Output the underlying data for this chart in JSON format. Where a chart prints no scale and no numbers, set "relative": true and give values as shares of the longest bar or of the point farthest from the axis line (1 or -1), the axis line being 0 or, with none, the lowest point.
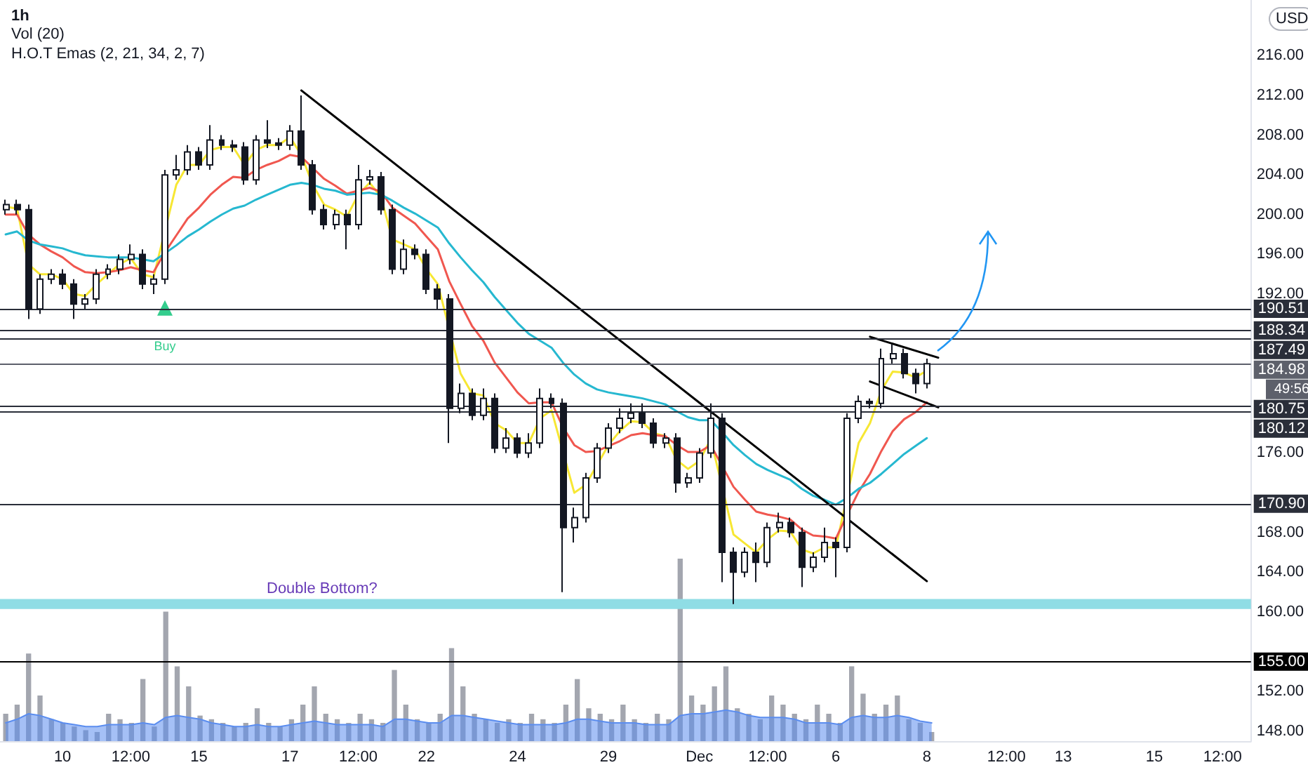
{
  "chart_data": [
    {
      "type": "candlestick",
      "title": "1h",
      "annotations": [
        "Vol (20)",
        "H.O.T Emas (2, 21, 34, 2, 7)",
        "USD",
        "49:56",
        "Double Bottom?"
      ],
      "categories": [
        null,
        null,
        null,
        null,
        null,
        "10",
        null,
        null,
        null,
        null,
        null,
        "12:00",
        null,
        null,
        null,
        null,
        null,
        "15",
        null,
        null,
        null,
        null,
        null,
        null,
        null,
        "17",
        null,
        null,
        null,
        null,
        null,
        "12:00",
        null,
        null,
        null,
        null,
        null,
        "22",
        null,
        null,
        null,
        null,
        null,
        null,
        null,
        "24",
        null,
        null,
        null,
        null,
        null,
        null,
        null,
        "29",
        null,
        null,
        null,
        null,
        null,
        null,
        null,
        "Dec",
        null,
        null,
        null,
        null,
        null,
        "12:00",
        null,
        null,
        null,
        null,
        null,
        "6",
        null,
        null,
        null,
        null,
        null,
        null,
        null,
        "8",
        null,
        null,
        null,
        null,
        null,
        null,
        "12:00",
        null,
        null,
        null,
        null,
        "13",
        null,
        null,
        null,
        null,
        null,
        null,
        null,
        "15",
        null,
        null,
        null,
        null,
        null,
        "12:00",
        null,
        null
      ],
      "color": "#131722",
      "ohlc": [
        [
          200.5,
          201.5,
          200.0,
          201.0
        ],
        [
          201.0,
          201.5,
          200.0,
          200.5
        ],
        [
          200.5,
          201.0,
          189.5,
          190.5
        ],
        [
          190.5,
          194.0,
          190.0,
          193.5
        ],
        [
          193.5,
          194.5,
          193.0,
          194.0
        ],
        [
          194.0,
          194.5,
          192.5,
          193.0
        ],
        [
          193.0,
          193.5,
          189.5,
          191.0
        ],
        [
          191.0,
          192.0,
          190.5,
          191.5
        ],
        [
          191.5,
          194.5,
          191.0,
          194.0
        ],
        [
          194.0,
          195.0,
          193.5,
          194.5
        ],
        [
          194.5,
          196.0,
          194.0,
          195.5
        ],
        [
          195.5,
          197.0,
          195.0,
          196.0
        ],
        [
          196.0,
          196.5,
          192.5,
          193.0
        ],
        [
          193.0,
          194.0,
          192.0,
          193.5
        ],
        [
          193.5,
          204.5,
          193.0,
          204.0
        ],
        [
          204.0,
          206.0,
          203.5,
          204.5
        ],
        [
          204.5,
          207.0,
          204.0,
          206.3
        ],
        [
          206.3,
          206.8,
          204.5,
          205.0
        ],
        [
          205.0,
          209.0,
          204.5,
          207.5
        ],
        [
          207.5,
          208.0,
          206.5,
          207.0
        ],
        [
          207.0,
          207.5,
          206.3,
          206.8
        ],
        [
          206.8,
          207.3,
          203.0,
          203.5
        ],
        [
          203.5,
          208.0,
          203.0,
          207.5
        ],
        [
          207.5,
          209.5,
          206.7,
          207.2
        ],
        [
          207.2,
          207.7,
          206.5,
          207.0
        ],
        [
          207.0,
          209.0,
          206.5,
          208.4
        ],
        [
          208.4,
          212.0,
          204.5,
          205.0
        ],
        [
          205.0,
          205.5,
          200.0,
          200.5
        ],
        [
          200.5,
          201.0,
          198.5,
          199.0
        ],
        [
          199.0,
          200.5,
          198.5,
          200.0
        ],
        [
          200.0,
          200.5,
          196.5,
          199.0
        ],
        [
          199.0,
          205.0,
          198.5,
          203.5
        ],
        [
          203.5,
          204.5,
          203.0,
          203.8
        ],
        [
          203.8,
          204.3,
          200.0,
          200.5
        ],
        [
          200.5,
          201.0,
          194.0,
          194.5
        ],
        [
          194.5,
          197.5,
          194.0,
          196.5
        ],
        [
          196.5,
          197.0,
          195.5,
          196.0
        ],
        [
          196.0,
          196.5,
          192.0,
          192.5
        ],
        [
          192.5,
          193.0,
          190.5,
          191.5
        ],
        [
          191.5,
          192.0,
          177.0,
          180.5
        ],
        [
          180.5,
          183.0,
          180.0,
          182.0
        ],
        [
          182.0,
          182.5,
          179.3,
          179.8
        ],
        [
          179.8,
          182.5,
          179.3,
          181.5
        ],
        [
          181.5,
          182.0,
          176.0,
          176.5
        ],
        [
          176.5,
          178.5,
          176.0,
          177.5
        ],
        [
          177.5,
          178.0,
          175.5,
          176.0
        ],
        [
          176.0,
          178.0,
          175.5,
          177.0
        ],
        [
          177.0,
          182.5,
          176.5,
          181.5
        ],
        [
          181.5,
          182.0,
          180.5,
          181.0
        ],
        [
          181.0,
          181.5,
          162.0,
          168.5
        ],
        [
          168.5,
          170.5,
          167.0,
          169.5
        ],
        [
          169.5,
          174.0,
          169.0,
          173.5
        ],
        [
          173.5,
          177.0,
          173.0,
          176.5
        ],
        [
          176.5,
          179.0,
          176.0,
          178.5
        ],
        [
          178.5,
          180.5,
          178.0,
          179.5
        ],
        [
          179.5,
          181.0,
          179.0,
          180.0
        ],
        [
          180.0,
          181.0,
          178.5,
          179.0
        ],
        [
          179.0,
          179.5,
          176.5,
          177.0
        ],
        [
          177.0,
          178.0,
          176.5,
          177.5
        ],
        [
          177.5,
          178.0,
          172.0,
          173.0
        ],
        [
          173.0,
          174.0,
          172.5,
          173.5
        ],
        [
          173.5,
          176.5,
          173.0,
          176.0
        ],
        [
          176.0,
          181.0,
          175.5,
          179.5
        ],
        [
          179.5,
          180.0,
          163.0,
          166.0
        ],
        [
          166.0,
          166.5,
          160.8,
          164.0
        ],
        [
          164.0,
          166.5,
          163.5,
          166.0
        ],
        [
          166.0,
          167.0,
          163.0,
          165.0
        ],
        [
          165.0,
          169.0,
          164.5,
          168.5
        ],
        [
          168.5,
          170.0,
          168.0,
          169.0
        ],
        [
          169.0,
          169.5,
          167.5,
          168.0
        ],
        [
          168.0,
          168.5,
          162.5,
          164.5
        ],
        [
          164.5,
          166.0,
          164.0,
          165.5
        ],
        [
          165.5,
          168.5,
          165.0,
          167.0
        ],
        [
          167.0,
          167.5,
          163.5,
          166.5
        ],
        [
          166.5,
          180.0,
          166.0,
          179.5
        ],
        [
          179.5,
          181.8,
          179.0,
          181.2
        ],
        [
          181.2,
          181.5,
          180.5,
          181.0
        ],
        [
          181.0,
          186.5,
          180.5,
          185.5
        ],
        [
          185.5,
          187.0,
          185.0,
          186.0
        ],
        [
          186.0,
          186.5,
          183.5,
          184.0
        ],
        [
          184.0,
          184.5,
          182.0,
          183.0
        ],
        [
          183.0,
          185.5,
          182.5,
          184.98
        ],
        null,
        null,
        null,
        null,
        null,
        null,
        null,
        null,
        null,
        null,
        null,
        null,
        null,
        null,
        null,
        null,
        null,
        null,
        null,
        null,
        null,
        null,
        null,
        null,
        null,
        null,
        null,
        null
      ],
      "marker": "none",
      "series": [
        {
          "type": "line",
          "color": "#f7e733",
          "values": [
            200.8,
            200.6,
            195.0,
            194.0,
            194.0,
            193.5,
            192.0,
            191.8,
            193.0,
            194.0,
            195.0,
            195.6,
            194.0,
            193.7,
            null,
            203.0,
            205.0,
            205.0,
            206.5,
            206.8,
            206.8,
            205.0,
            206.5,
            207.0,
            207.0,
            207.8,
            206.0,
            203.0,
            201.0,
            200.5,
            199.8,
            202.0,
            203.2,
            201.8,
            197.5,
            197.0,
            196.5,
            194.5,
            193.0,
            null,
            184.0,
            182.0,
            181.8,
            179.0,
            178.3,
            177.0,
            177.0,
            179.5,
            180.3,
            null,
            172.0,
            172.8,
            174.8,
            176.8,
            178.2,
            179.2,
            179.1,
            178.0,
            177.7,
            175.3,
            174.4,
            175.2,
            177.4,
            null,
            167.8,
            166.9,
            166.0,
            167.3,
            168.2,
            168.1,
            166.3,
            165.9,
            166.5,
            166.5,
            null,
            177.0,
            179.0,
            182.3,
            184.2,
            184.1,
            183.6,
            184.3,
            null,
            null,
            null,
            null,
            null,
            null,
            null,
            null,
            null,
            null,
            null,
            null,
            null,
            null,
            null,
            null,
            null,
            null,
            null,
            null,
            null,
            null,
            null,
            null,
            null,
            null,
            null,
            null
          ]
        },
        {
          "type": "line",
          "color": "#f0574f",
          "values": [
            200.0,
            200.0,
            198.0,
            197.0,
            196.3,
            195.7,
            194.8,
            194.2,
            194.1,
            194.2,
            194.4,
            194.7,
            194.4,
            194.2,
            196.2,
            197.9,
            199.6,
            200.7,
            202.0,
            203.0,
            203.8,
            203.7,
            204.5,
            205.0,
            205.4,
            206.0,
            205.8,
            204.7,
            203.6,
            202.9,
            202.1,
            202.4,
            202.7,
            202.3,
            200.7,
            199.9,
            199.1,
            197.8,
            196.5,
            193.3,
            191.0,
            188.8,
            187.3,
            185.1,
            183.6,
            182.1,
            181.0,
            181.1,
            181.1,
            178.6,
            176.8,
            176.1,
            176.2,
            176.7,
            177.2,
            177.8,
            178.0,
            177.8,
            177.7,
            176.8,
            176.1,
            176.1,
            176.8,
            174.7,
            172.6,
            171.3,
            170.1,
            169.8,
            169.6,
            169.3,
            168.3,
            167.7,
            167.6,
            167.4,
            169.8,
            172.1,
            173.9,
            176.2,
            178.2,
            179.4,
            180.1,
            181.1,
            null,
            null,
            null,
            null,
            null,
            null,
            null,
            null,
            null,
            null,
            null,
            null,
            null,
            null,
            null,
            null,
            null,
            null,
            null,
            null,
            null,
            null,
            null,
            null,
            null,
            null,
            null,
            null
          ]
        },
        {
          "type": "line",
          "color": "#26b8d0",
          "values": [
            198.0,
            198.3,
            197.4,
            197.0,
            196.8,
            196.6,
            196.2,
            195.9,
            195.8,
            195.7,
            195.7,
            195.7,
            195.5,
            195.3,
            196.1,
            196.9,
            197.8,
            198.5,
            199.3,
            200.0,
            200.6,
            200.9,
            201.5,
            202.0,
            202.5,
            203.0,
            203.2,
            203.0,
            202.6,
            202.4,
            202.0,
            202.1,
            202.2,
            202.0,
            201.4,
            200.7,
            200.1,
            199.4,
            198.7,
            197.1,
            195.7,
            194.4,
            193.2,
            191.7,
            190.4,
            189.1,
            188.0,
            187.3,
            186.6,
            185.1,
            183.9,
            183.0,
            182.4,
            182.1,
            181.9,
            181.7,
            181.5,
            181.2,
            180.9,
            180.2,
            179.6,
            179.3,
            179.3,
            178.1,
            176.8,
            175.8,
            174.9,
            174.3,
            173.8,
            173.3,
            172.4,
            171.7,
            171.3,
            170.8,
            171.5,
            172.4,
            173.0,
            173.9,
            174.9,
            175.9,
            176.7,
            177.5,
            null,
            null,
            null,
            null,
            null,
            null,
            null,
            null,
            null,
            null,
            null,
            null,
            null,
            null,
            null,
            null,
            null,
            null,
            null,
            null,
            null,
            null,
            null,
            null,
            null,
            null,
            null,
            null
          ]
        },
        {
          "type": "line",
          "color": "#000000",
          "values": [
            null,
            null,
            null,
            null,
            null,
            null,
            null,
            null,
            null,
            null,
            null,
            null,
            null,
            null,
            null,
            null,
            null,
            null,
            null,
            null,
            null,
            null,
            null,
            null,
            null,
            null,
            212.5,
            null,
            null,
            null,
            null,
            null,
            null,
            null,
            null,
            null,
            null,
            null,
            null,
            null,
            null,
            null,
            null,
            null,
            null,
            null,
            null,
            null,
            null,
            null,
            null,
            null,
            null,
            null,
            null,
            null,
            null,
            null,
            null,
            null,
            null,
            null,
            null,
            null,
            null,
            null,
            null,
            null,
            null,
            null,
            null,
            null,
            null,
            null,
            null,
            null,
            null,
            null,
            null,
            null,
            null,
            163.1,
            null,
            null,
            null,
            null,
            null,
            null,
            null,
            null,
            null,
            null,
            null,
            null,
            null,
            null,
            null,
            null,
            null,
            null,
            null,
            null,
            null,
            null,
            null,
            null,
            null,
            null,
            null,
            null
          ]
        },
        {
          "type": "line",
          "color": "#000000",
          "values": [
            null,
            null,
            null,
            null,
            null,
            null,
            null,
            null,
            null,
            null,
            null,
            null,
            null,
            null,
            null,
            null,
            null,
            null,
            null,
            null,
            null,
            null,
            null,
            null,
            null,
            null,
            null,
            null,
            null,
            null,
            null,
            null,
            null,
            null,
            null,
            null,
            null,
            null,
            null,
            null,
            null,
            null,
            null,
            null,
            null,
            null,
            null,
            null,
            null,
            null,
            null,
            null,
            null,
            null,
            null,
            null,
            null,
            null,
            null,
            null,
            null,
            null,
            null,
            null,
            null,
            null,
            null,
            null,
            null,
            null,
            null,
            null,
            null,
            null,
            null,
            null,
            187.7,
            null,
            null,
            null,
            null,
            null,
            185.6,
            null,
            null,
            null,
            null,
            null,
            null,
            null,
            null,
            null,
            null,
            null,
            null,
            null,
            null,
            null,
            null,
            null,
            null,
            null,
            null,
            null,
            null,
            null,
            null,
            null,
            null,
            null
          ]
        },
        {
          "type": "line",
          "color": "#000000",
          "values": [
            null,
            null,
            null,
            null,
            null,
            null,
            null,
            null,
            null,
            null,
            null,
            null,
            null,
            null,
            null,
            null,
            null,
            null,
            null,
            null,
            null,
            null,
            null,
            null,
            null,
            null,
            null,
            null,
            null,
            null,
            null,
            null,
            null,
            null,
            null,
            null,
            null,
            null,
            null,
            null,
            null,
            null,
            null,
            null,
            null,
            null,
            null,
            null,
            null,
            null,
            null,
            null,
            null,
            null,
            null,
            null,
            null,
            null,
            null,
            null,
            null,
            null,
            null,
            null,
            null,
            null,
            null,
            null,
            null,
            null,
            null,
            null,
            null,
            null,
            null,
            null,
            183.2,
            null,
            null,
            null,
            null,
            null,
            180.6,
            null,
            null,
            null,
            null,
            null,
            null,
            null,
            null,
            null,
            null,
            null,
            null,
            null,
            null,
            null,
            null,
            null,
            null,
            null,
            null,
            null,
            null,
            null,
            null,
            null,
            null,
            null
          ]
        },
        {
          "type": "scatter",
          "name": "Buy",
          "marker": "triangle",
          "color": "#00c070",
          "values": [
            null,
            null,
            null,
            null,
            null,
            null,
            null,
            null,
            null,
            null,
            null,
            null,
            null,
            null,
            190.6,
            null,
            null,
            null,
            null,
            null,
            null,
            null,
            null,
            null,
            null,
            null,
            null,
            null,
            null,
            null,
            null,
            null,
            null,
            null,
            null,
            null,
            null,
            null,
            null,
            null,
            null,
            null,
            null,
            null,
            null,
            null,
            null,
            null,
            null,
            null,
            null,
            null,
            null,
            null,
            null,
            null,
            null,
            null,
            null,
            null,
            null,
            null,
            null,
            null,
            null,
            null,
            null,
            null,
            null,
            null,
            null,
            null,
            null,
            null,
            null,
            null,
            null,
            null,
            null,
            null,
            null,
            null,
            null,
            null,
            null,
            null,
            null,
            null,
            null,
            null,
            null,
            null,
            null,
            null,
            null,
            null,
            null,
            null,
            null,
            null,
            null,
            null,
            null,
            null,
            null,
            null,
            null,
            null,
            null,
            null
          ]
        }
      ],
      "ylim": [
        147,
        221.6
      ],
      "yticks": [
        {
          "value": 148,
          "label": "148.00"
        },
        {
          "value": 152,
          "label": "152.00"
        },
        {
          "value": 160,
          "label": "160.00"
        },
        {
          "value": 164,
          "label": "164.00"
        },
        {
          "value": 168,
          "label": "168.00"
        },
        {
          "value": 176,
          "label": "176.00"
        },
        {
          "value": 192,
          "label": "192.00"
        },
        {
          "value": 196,
          "label": "196.00"
        },
        {
          "value": 200,
          "label": "200.00"
        },
        {
          "value": 204,
          "label": "204.00"
        },
        {
          "value": 208,
          "label": "208.00"
        },
        {
          "value": 212,
          "label": "212.00"
        },
        {
          "value": 216,
          "label": "216.00"
        }
      ],
      "ref_lines": [
        {
          "axis": "y",
          "value": 190.51,
          "label": "190.51",
          "color": "#2a2e39"
        },
        {
          "axis": "y",
          "value": 188.34,
          "label": "188.34",
          "color": "#2a2e39"
        },
        {
          "axis": "y",
          "value": 187.49,
          "label": "187.49",
          "color": "#2a2e39"
        },
        {
          "axis": "y",
          "value": 184.98,
          "label": "184.98",
          "color": "#5d606b"
        },
        {
          "axis": "y",
          "value": 180.75,
          "label": "180.75",
          "color": "#2a2e39"
        },
        {
          "axis": "y",
          "value": 180.12,
          "label": "180.12",
          "color": "#2a2e39"
        },
        {
          "axis": "y",
          "value": 170.9,
          "label": "170.90",
          "color": "#2a2e39"
        },
        {
          "axis": "y",
          "value": 155,
          "label": "155.00",
          "color": "#000000"
        }
      ],
      "bands": [
        {
          "axis": "y",
          "from": 160.3,
          "to": 161.3,
          "color": "#8fdde5"
        }
      ]
    },
    {
      "type": "bar",
      "relative": true,
      "tick_labels": false,
      "categories": [
        null,
        null,
        null,
        null,
        null,
        null,
        null,
        null,
        null,
        null,
        null,
        null,
        null,
        null,
        null,
        null,
        null,
        null,
        null,
        null,
        null,
        null,
        null,
        null,
        null,
        null,
        null,
        null,
        null,
        null,
        null,
        null,
        null,
        null,
        null,
        null,
        null,
        null,
        null,
        null,
        null,
        null,
        null,
        null,
        null,
        null,
        null,
        null,
        null,
        null,
        null,
        null,
        null,
        null,
        null,
        null,
        null,
        null,
        null,
        null,
        null,
        null,
        null,
        null,
        null,
        null,
        null,
        null,
        null,
        null,
        null,
        null,
        null,
        null,
        null,
        null,
        null,
        null,
        null,
        null,
        null,
        null,
        null,
        null,
        null,
        null,
        null,
        null,
        null,
        null,
        null,
        null,
        null,
        null,
        null,
        null,
        null,
        null,
        null,
        null,
        null,
        null,
        null,
        null,
        null,
        null,
        null,
        null,
        null,
        null
      ],
      "series": [
        {
          "type": "area",
          "color": "#5b8def",
          "values": [
            0.1,
            0.12,
            0.15,
            0.14,
            0.12,
            0.1,
            0.09,
            0.08,
            0.08,
            0.09,
            0.09,
            0.09,
            0.1,
            0.09,
            0.13,
            0.14,
            0.13,
            0.12,
            0.1,
            0.09,
            0.08,
            0.08,
            0.09,
            0.08,
            0.08,
            0.09,
            0.1,
            0.11,
            0.1,
            0.09,
            0.09,
            0.09,
            0.09,
            0.08,
            0.12,
            0.12,
            0.11,
            0.1,
            0.1,
            0.14,
            0.14,
            0.13,
            0.12,
            0.11,
            0.1,
            0.09,
            0.09,
            0.09,
            0.09,
            0.1,
            0.12,
            0.12,
            0.11,
            0.1,
            0.1,
            0.1,
            0.09,
            0.09,
            0.09,
            0.14,
            0.15,
            0.15,
            0.16,
            0.17,
            0.16,
            0.14,
            0.13,
            0.13,
            0.13,
            0.12,
            0.1,
            0.1,
            0.1,
            0.09,
            0.13,
            0.14,
            0.13,
            0.13,
            0.14,
            0.13,
            0.11,
            0.1,
            null,
            null,
            null,
            null,
            null,
            null,
            null,
            null,
            null,
            null,
            null,
            null,
            null,
            null,
            null,
            null,
            null,
            null,
            null,
            null,
            null,
            null,
            null,
            null,
            null,
            null,
            null,
            null
          ]
        },
        {
          "type": "bar",
          "color": "#a3a6af",
          "values": [
            0.15,
            0.2,
            0.48,
            0.25,
            0.12,
            0.1,
            0.08,
            0.06,
            0.05,
            0.15,
            0.12,
            0.1,
            0.34,
            0.08,
            0.71,
            0.41,
            0.3,
            0.14,
            0.12,
            0.1,
            0.08,
            0.1,
            0.18,
            0.1,
            0.08,
            0.12,
            0.2,
            0.3,
            0.15,
            0.12,
            0.1,
            0.15,
            0.12,
            0.1,
            0.39,
            0.2,
            0.12,
            0.1,
            0.15,
            0.51,
            0.3,
            0.15,
            0.12,
            0.1,
            0.12,
            0.1,
            0.15,
            0.12,
            0.1,
            0.2,
            0.34,
            0.18,
            0.15,
            0.12,
            0.2,
            0.12,
            0.1,
            0.15,
            0.12,
            1.0,
            0.25,
            0.2,
            0.3,
            0.41,
            0.18,
            0.15,
            0.12,
            0.25,
            0.2,
            0.15,
            0.12,
            0.2,
            0.15,
            0.1,
            0.41,
            0.26,
            0.15,
            0.2,
            0.25,
            0.12,
            0.1,
            0.05,
            null,
            null,
            null,
            null,
            null,
            null,
            null,
            null,
            null,
            null,
            null,
            null,
            null,
            null,
            null,
            null,
            null,
            null,
            null,
            null,
            null,
            null,
            null,
            null,
            null,
            null,
            null,
            null
          ]
        }
      ]
    }
  ]
}
